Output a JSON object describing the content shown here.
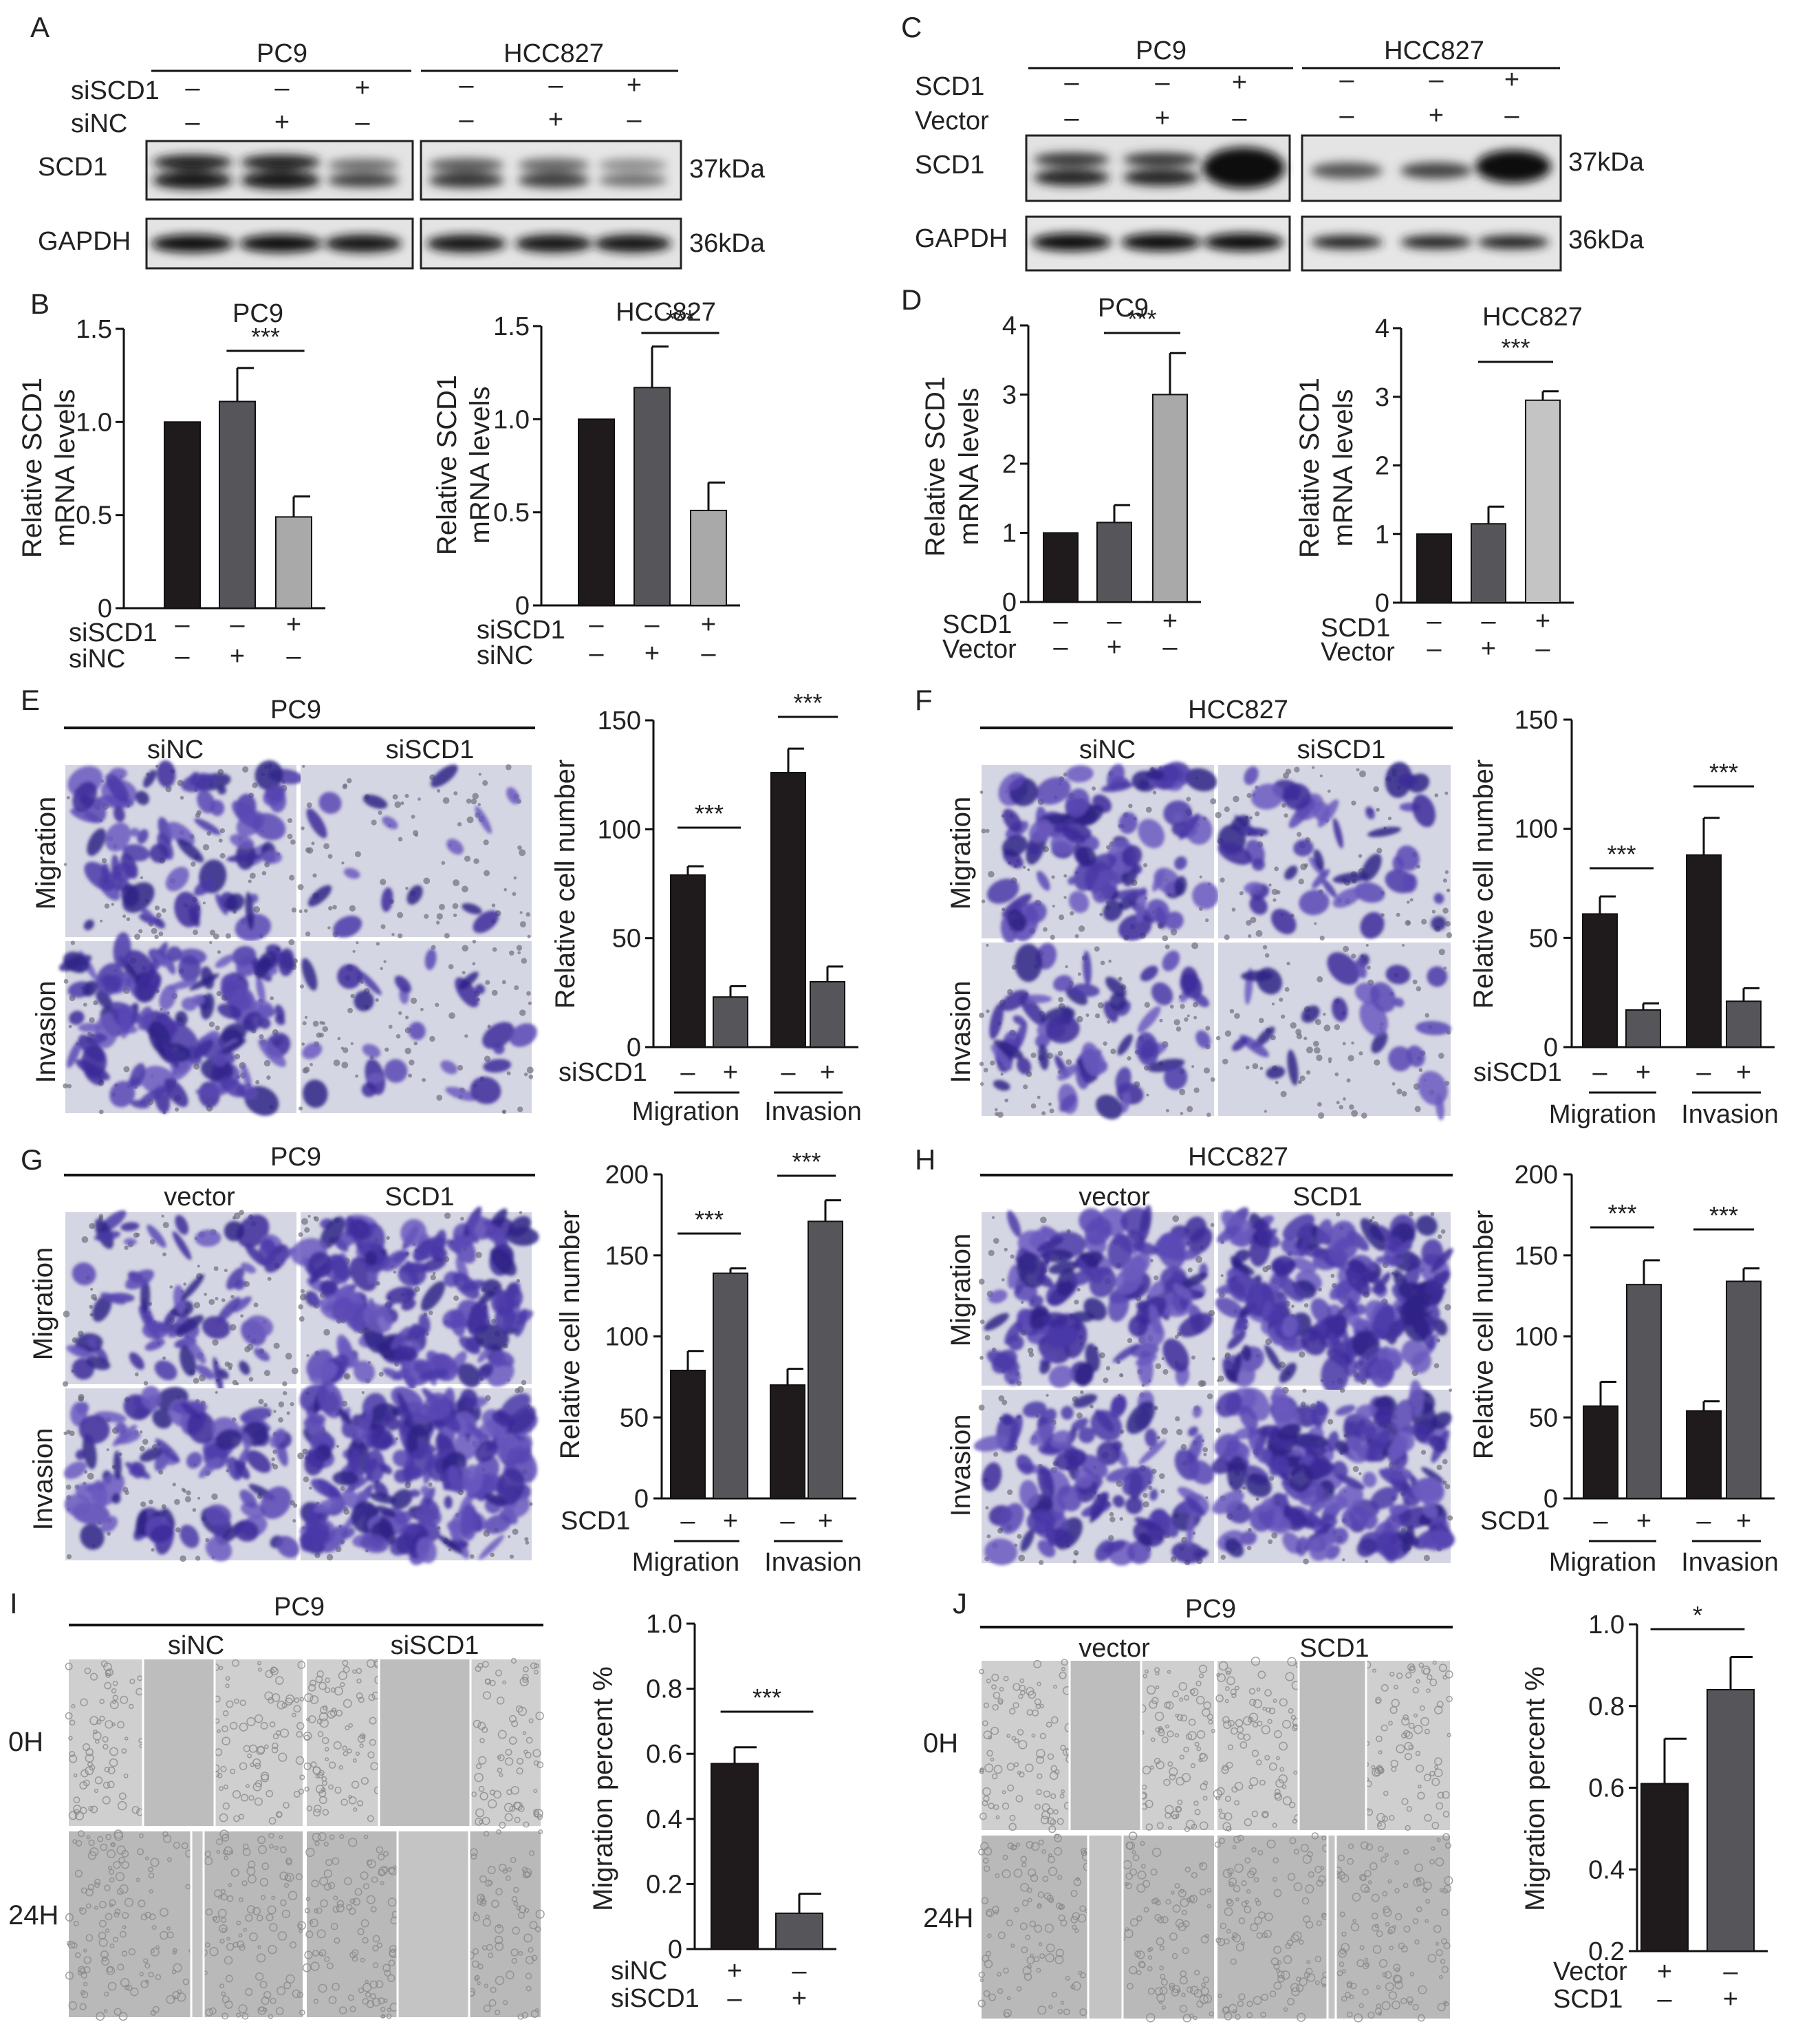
{
  "figure": {
    "panel_letters": [
      "A",
      "B",
      "C",
      "D",
      "E",
      "F",
      "G",
      "H",
      "I",
      "J"
    ],
    "cells": {
      "pc9": "PC9",
      "hcc827": "HCC827"
    },
    "kda": {
      "scd1": "37kDa",
      "gapdh": "36kDa"
    },
    "proteins": {
      "scd1": "SCD1",
      "gapdh": "GAPDH"
    },
    "rows": {
      "sicd1": "siSCD1",
      "sinc": "siNC",
      "scd1": "SCD1",
      "vector": "Vector"
    },
    "signs": {
      "minus": "–",
      "plus": "+"
    },
    "sig": {
      "three": "***",
      "one": "*"
    },
    "groups": {
      "sinc": "siNC",
      "siscd1": "siSCD1",
      "vector": "vector",
      "scd1": "SCD1",
      "migration": "Migration",
      "invasion": "Invasion",
      "h0": "0H",
      "h24": "24H"
    },
    "ylabels": {
      "mrna1": "Relative SCD1",
      "mrna2": "mRNA levels",
      "cell": "Relative cell number",
      "mig": "Migration percent %"
    }
  },
  "chart_data": [
    {
      "panel": "B",
      "type": "bar",
      "title": "PC9",
      "ylabel": "Relative SCD1 mRNA levels",
      "ylim": [
        0,
        1.5
      ],
      "yticks": [
        "0",
        "0.5",
        "1.0",
        "1.5"
      ],
      "values": [
        1.0,
        1.11,
        0.49
      ],
      "errors": [
        0,
        0.18,
        0.11
      ],
      "colors": [
        "#1f1a1b",
        "#55555a",
        "#a9a9a9"
      ],
      "conditions": {
        "siSCD1": [
          "–",
          "–",
          "+"
        ],
        "siNC": [
          "–",
          "+",
          "–"
        ]
      },
      "sig": [
        {
          "from": 1,
          "to": 2,
          "label": "***"
        }
      ]
    },
    {
      "panel": "B",
      "type": "bar",
      "title": "HCC827",
      "ylabel": "Relative SCD1 mRNA levels",
      "ylim": [
        0,
        1.5
      ],
      "yticks": [
        "0",
        "0.5",
        "1.0",
        "1.5"
      ],
      "values": [
        1.0,
        1.17,
        0.51
      ],
      "errors": [
        0,
        0.22,
        0.15
      ],
      "colors": [
        "#1f1a1b",
        "#55555a",
        "#a9a9a9"
      ],
      "conditions": {
        "siSCD1": [
          "–",
          "–",
          "+"
        ],
        "siNC": [
          "–",
          "+",
          "–"
        ]
      },
      "sig": [
        {
          "from": 1,
          "to": 2,
          "label": "***"
        }
      ]
    },
    {
      "panel": "D",
      "type": "bar",
      "title": "PC9",
      "ylabel": "Relative SCD1 mRNA levels",
      "ylim": [
        0,
        4
      ],
      "yticks": [
        "0",
        "1",
        "2",
        "3",
        "4"
      ],
      "values": [
        1.0,
        1.15,
        3.0
      ],
      "errors": [
        0,
        0.25,
        0.6
      ],
      "colors": [
        "#1f1a1b",
        "#55555a",
        "#a9a9a9"
      ],
      "conditions": {
        "SCD1": [
          "–",
          "–",
          "+"
        ],
        "Vector": [
          "–",
          "+",
          "–"
        ]
      },
      "sig": [
        {
          "from": 1,
          "to": 2,
          "label": "***"
        }
      ]
    },
    {
      "panel": "D",
      "type": "bar",
      "title": "HCC827",
      "ylabel": "Relative SCD1 mRNA levels",
      "ylim": [
        0,
        4
      ],
      "yticks": [
        "0",
        "1",
        "2",
        "3",
        "4"
      ],
      "values": [
        1.0,
        1.15,
        2.95
      ],
      "errors": [
        0,
        0.25,
        0.13
      ],
      "colors": [
        "#1f1a1b",
        "#55555a",
        "#c4c4c4"
      ],
      "conditions": {
        "SCD1": [
          "–",
          "–",
          "+"
        ],
        "Vector": [
          "–",
          "+",
          "–"
        ]
      },
      "sig": [
        {
          "from": 1,
          "to": 2,
          "label": "***"
        }
      ]
    },
    {
      "panel": "E",
      "type": "bar",
      "ylabel": "Relative cell number",
      "ylim": [
        0,
        150
      ],
      "yticks": [
        "0",
        "50",
        "100",
        "150"
      ],
      "values": [
        79,
        23,
        126,
        30
      ],
      "errors": [
        4,
        5,
        11,
        7
      ],
      "colors": [
        "#1f1a1b",
        "#55555a",
        "#1f1a1b",
        "#55555a"
      ],
      "conditions": {
        "siSCD1": [
          "–",
          "+",
          "–",
          "+"
        ]
      },
      "groups": [
        "Migration",
        "Invasion"
      ],
      "sig": [
        {
          "from": 0,
          "to": 1,
          "label": "***"
        },
        {
          "from": 2,
          "to": 3,
          "label": "***"
        }
      ]
    },
    {
      "panel": "F",
      "type": "bar",
      "ylabel": "Relative cell number",
      "ylim": [
        0,
        150
      ],
      "yticks": [
        "0",
        "50",
        "100",
        "150"
      ],
      "values": [
        61,
        17,
        88,
        21
      ],
      "errors": [
        8,
        3,
        17,
        6
      ],
      "colors": [
        "#1f1a1b",
        "#55555a",
        "#1f1a1b",
        "#55555a"
      ],
      "conditions": {
        "siSCD1": [
          "–",
          "+",
          "–",
          "+"
        ]
      },
      "groups": [
        "Migration",
        "Invasion"
      ],
      "sig": [
        {
          "from": 0,
          "to": 1,
          "label": "***"
        },
        {
          "from": 2,
          "to": 3,
          "label": "***"
        }
      ]
    },
    {
      "panel": "G",
      "type": "bar",
      "ylabel": "Relative cell number",
      "ylim": [
        0,
        200
      ],
      "yticks": [
        "0",
        "50",
        "100",
        "150",
        "200"
      ],
      "values": [
        79,
        139,
        70,
        171
      ],
      "errors": [
        12,
        3,
        10,
        13
      ],
      "colors": [
        "#1f1a1b",
        "#55555a",
        "#1f1a1b",
        "#55555a"
      ],
      "conditions": {
        "SCD1": [
          "–",
          "+",
          "–",
          "+"
        ]
      },
      "groups": [
        "Migration",
        "Invasion"
      ],
      "sig": [
        {
          "from": 0,
          "to": 1,
          "label": "***"
        },
        {
          "from": 2,
          "to": 3,
          "label": "***"
        }
      ]
    },
    {
      "panel": "H",
      "type": "bar",
      "ylabel": "Relative cell number",
      "ylim": [
        0,
        200
      ],
      "yticks": [
        "0",
        "50",
        "100",
        "150",
        "200"
      ],
      "values": [
        57,
        132,
        54,
        134
      ],
      "errors": [
        15,
        15,
        6,
        8
      ],
      "colors": [
        "#1f1a1b",
        "#55555a",
        "#1f1a1b",
        "#55555a"
      ],
      "conditions": {
        "SCD1": [
          "–",
          "+",
          "–",
          "+"
        ]
      },
      "groups": [
        "Migration",
        "Invasion"
      ],
      "sig": [
        {
          "from": 0,
          "to": 1,
          "label": "***"
        },
        {
          "from": 2,
          "to": 3,
          "label": "***"
        }
      ]
    },
    {
      "panel": "I",
      "type": "bar",
      "ylabel": "Migration percent %",
      "ylim": [
        0,
        1.0
      ],
      "yticks": [
        "0",
        "0.2",
        "0.4",
        "0.6",
        "0.8",
        "1.0"
      ],
      "values": [
        0.57,
        0.11
      ],
      "errors": [
        0.05,
        0.06
      ],
      "colors": [
        "#1f1a1b",
        "#55555a"
      ],
      "conditions": {
        "siNC": [
          "+",
          "–"
        ],
        "siSCD1": [
          "–",
          "+"
        ]
      },
      "sig": [
        {
          "from": 0,
          "to": 1,
          "label": "***"
        }
      ]
    },
    {
      "panel": "J",
      "type": "bar",
      "ylabel": "Migration percent %",
      "ylim": [
        0.2,
        1.0
      ],
      "yticks": [
        "0.2",
        "0.4",
        "0.6",
        "0.8",
        "1.0"
      ],
      "values": [
        0.61,
        0.84
      ],
      "errors": [
        0.11,
        0.08
      ],
      "colors": [
        "#1f1a1b",
        "#55555a"
      ],
      "conditions": {
        "Vector": [
          "+",
          "–"
        ],
        "SCD1": [
          "–",
          "+"
        ]
      },
      "sig": [
        {
          "from": 0,
          "to": 1,
          "label": "*"
        }
      ]
    }
  ]
}
